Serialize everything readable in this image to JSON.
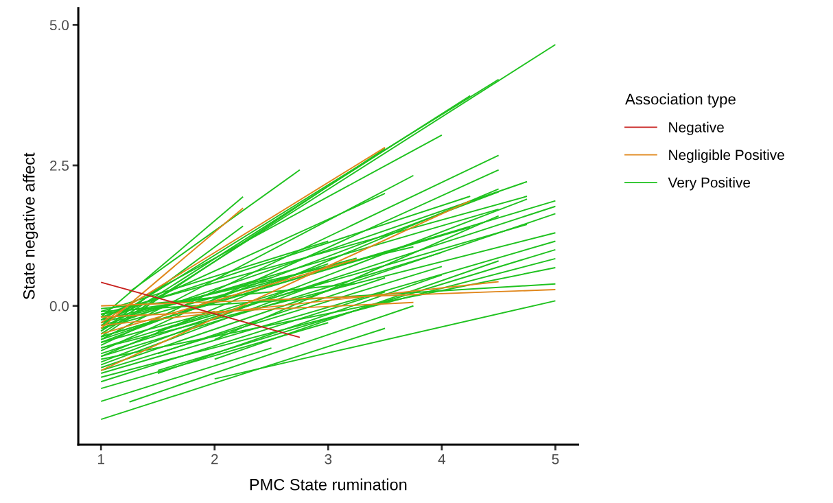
{
  "chart_data": {
    "type": "line",
    "xlabel": "PMC State rumination",
    "ylabel": "State negative affect",
    "legend_title": "Association type",
    "legend": "right",
    "grid": false,
    "line_style": "solid",
    "marker": "none",
    "xlim": [
      0.8,
      5.2
    ],
    "xticks": [
      1,
      2,
      3,
      4,
      5
    ],
    "ylim": [
      -2.47,
      5.3
    ],
    "yticks": [
      {
        "value": 0,
        "label": "0.0"
      },
      {
        "value": 2.5,
        "label": "2.5"
      },
      {
        "value": 5,
        "label": "5.0"
      }
    ],
    "series": [
      {
        "name": "Negative",
        "color": "#c8201e",
        "x": [
          1,
          2.75
        ],
        "values": [
          0.42,
          -0.56
        ]
      },
      {
        "name": "Negligible Positive",
        "color": "#e0861a",
        "x": [
          1,
          3.5
        ],
        "values": [
          -0.3,
          2.82
        ]
      },
      {
        "color": "#e0861a",
        "x": [
          1,
          2.25
        ],
        "values": [
          -0.4,
          1.74
        ]
      },
      {
        "color": "#e0861a",
        "x": [
          1,
          4.25
        ],
        "values": [
          -1.15,
          1.87
        ]
      },
      {
        "color": "#e0861a",
        "x": [
          1,
          5
        ],
        "values": [
          0.0,
          0.29
        ]
      },
      {
        "color": "#e0861a",
        "x": [
          1,
          4.5
        ],
        "values": [
          -0.35,
          0.43
        ]
      },
      {
        "color": "#e0861a",
        "x": [
          1,
          3.75
        ],
        "values": [
          -0.2,
          0.06
        ]
      },
      {
        "color": "#e0861a",
        "x": [
          1,
          3.25
        ],
        "values": [
          -0.5,
          0.83
        ]
      },
      {
        "name": "Very Positive",
        "color": "#1fc21f",
        "x": [
          1,
          5
        ],
        "values": [
          -0.5,
          4.65
        ]
      },
      {
        "color": "#1fc21f",
        "x": [
          1,
          4.5
        ],
        "values": [
          -0.35,
          4.03
        ]
      },
      {
        "color": "#1fc21f",
        "x": [
          1,
          4.25
        ],
        "values": [
          -0.45,
          3.74
        ]
      },
      {
        "color": "#1fc21f",
        "x": [
          1,
          4
        ],
        "values": [
          -0.25,
          3.04
        ]
      },
      {
        "color": "#1fc21f",
        "x": [
          1,
          3.5
        ],
        "values": [
          -0.55,
          2.8
        ]
      },
      {
        "color": "#1fc21f",
        "x": [
          1.25,
          2.75
        ],
        "values": [
          0.25,
          2.42
        ]
      },
      {
        "color": "#1fc21f",
        "x": [
          1,
          2.25
        ],
        "values": [
          -0.2,
          1.94
        ]
      },
      {
        "color": "#1fc21f",
        "x": [
          1,
          2.25
        ],
        "values": [
          -0.45,
          1.42
        ]
      },
      {
        "color": "#1fc21f",
        "x": [
          1,
          3.75
        ],
        "values": [
          -0.6,
          2.32
        ]
      },
      {
        "color": "#1fc21f",
        "x": [
          1,
          3.5
        ],
        "values": [
          -0.3,
          2.0
        ]
      },
      {
        "color": "#1fc21f",
        "x": [
          1,
          4.5
        ],
        "values": [
          -0.7,
          2.68
        ]
      },
      {
        "color": "#1fc21f",
        "x": [
          1,
          4.5
        ],
        "values": [
          -0.8,
          2.42
        ]
      },
      {
        "color": "#1fc21f",
        "x": [
          1,
          4.75
        ],
        "values": [
          -0.4,
          2.21
        ]
      },
      {
        "color": "#1fc21f",
        "x": [
          1,
          4.5
        ],
        "values": [
          -0.9,
          2.08
        ]
      },
      {
        "color": "#1fc21f",
        "x": [
          1,
          4.5
        ],
        "values": [
          -0.65,
          2.03
        ]
      },
      {
        "color": "#1fc21f",
        "x": [
          1,
          4.75
        ],
        "values": [
          -0.15,
          1.95
        ]
      },
      {
        "color": "#1fc21f",
        "x": [
          1,
          4.75
        ],
        "values": [
          -1.0,
          1.9
        ]
      },
      {
        "color": "#1fc21f",
        "x": [
          1,
          5
        ],
        "values": [
          -0.55,
          1.87
        ]
      },
      {
        "color": "#1fc21f",
        "x": [
          1,
          5
        ],
        "values": [
          -0.85,
          1.77
        ]
      },
      {
        "color": "#1fc21f",
        "x": [
          1,
          5
        ],
        "values": [
          -1.1,
          1.64
        ]
      },
      {
        "color": "#1fc21f",
        "x": [
          1,
          4.25
        ],
        "values": [
          -0.2,
          1.95
        ]
      },
      {
        "color": "#1fc21f",
        "x": [
          1,
          4.5
        ],
        "values": [
          -0.35,
          1.72
        ]
      },
      {
        "color": "#1fc21f",
        "x": [
          1,
          5
        ],
        "values": [
          -0.75,
          1.3
        ]
      },
      {
        "color": "#1fc21f",
        "x": [
          1,
          5
        ],
        "values": [
          -1.2,
          1.15
        ]
      },
      {
        "color": "#1fc21f",
        "x": [
          1.5,
          5
        ],
        "values": [
          -1.15,
          1.0
        ]
      },
      {
        "color": "#1fc21f",
        "x": [
          1,
          5
        ],
        "values": [
          -1.27,
          0.84
        ]
      },
      {
        "color": "#1fc21f",
        "x": [
          1,
          5
        ],
        "values": [
          -0.95,
          0.68
        ]
      },
      {
        "color": "#1fc21f",
        "x": [
          1,
          5
        ],
        "values": [
          -0.1,
          0.39
        ]
      },
      {
        "color": "#1fc21f",
        "x": [
          2,
          5
        ],
        "values": [
          -1.3,
          0.09
        ]
      },
      {
        "color": "#1fc21f",
        "x": [
          1,
          3.5
        ],
        "values": [
          -2.02,
          -0.4
        ]
      },
      {
        "color": "#1fc21f",
        "x": [
          1,
          2.5
        ],
        "values": [
          -1.7,
          -0.75
        ]
      },
      {
        "color": "#1fc21f",
        "x": [
          1.25,
          3.75
        ],
        "values": [
          -1.71,
          0.0
        ]
      },
      {
        "color": "#1fc21f",
        "x": [
          1,
          3
        ],
        "values": [
          -1.47,
          -0.3
        ]
      },
      {
        "color": "#1fc21f",
        "x": [
          1.5,
          4
        ],
        "values": [
          -1.2,
          0.55
        ]
      },
      {
        "color": "#1fc21f",
        "x": [
          1.5,
          3.5
        ],
        "values": [
          -0.85,
          0.5
        ]
      },
      {
        "color": "#1fc21f",
        "x": [
          2,
          4.5
        ],
        "values": [
          -0.95,
          0.8
        ]
      },
      {
        "color": "#1fc21f",
        "x": [
          1,
          3
        ],
        "values": [
          -1.05,
          0.45
        ]
      },
      {
        "color": "#1fc21f",
        "x": [
          1,
          3
        ],
        "values": [
          -0.6,
          0.75
        ]
      },
      {
        "color": "#1fc21f",
        "x": [
          1,
          2.5
        ],
        "values": [
          -0.3,
          0.5
        ]
      },
      {
        "color": "#1fc21f",
        "x": [
          1,
          3
        ],
        "values": [
          -0.1,
          1.15
        ]
      },
      {
        "color": "#1fc21f",
        "x": [
          1,
          2.75
        ],
        "values": [
          -0.75,
          0.35
        ]
      },
      {
        "color": "#1fc21f",
        "x": [
          1,
          4
        ],
        "values": [
          -0.9,
          0.95
        ]
      },
      {
        "color": "#1fc21f",
        "x": [
          1,
          3.25
        ],
        "values": [
          -0.4,
          0.85
        ]
      },
      {
        "color": "#1fc21f",
        "x": [
          1,
          2
        ],
        "values": [
          -0.15,
          0.15
        ]
      },
      {
        "color": "#1fc21f",
        "x": [
          1.5,
          4.75
        ],
        "values": [
          -0.45,
          1.45
        ]
      },
      {
        "color": "#1fc21f",
        "x": [
          1,
          4.25
        ],
        "values": [
          -0.55,
          1.4
        ]
      },
      {
        "color": "#1fc21f",
        "x": [
          1,
          4
        ],
        "values": [
          -1.15,
          0.7
        ]
      },
      {
        "color": "#1fc21f",
        "x": [
          1,
          3.75
        ],
        "values": [
          -0.25,
          1.05
        ]
      },
      {
        "color": "#1fc21f",
        "x": [
          2,
          4.5
        ],
        "values": [
          -0.6,
          1.6
        ]
      },
      {
        "color": "#1fc21f",
        "x": [
          1,
          2
        ],
        "values": [
          -0.65,
          -0.1
        ]
      },
      {
        "color": "#1fc21f",
        "x": [
          1,
          3.5
        ],
        "values": [
          -1.35,
          0.25
        ]
      },
      {
        "color": "#1fc21f",
        "x": [
          1,
          3.25
        ],
        "values": [
          -0.05,
          0.4
        ]
      }
    ]
  }
}
